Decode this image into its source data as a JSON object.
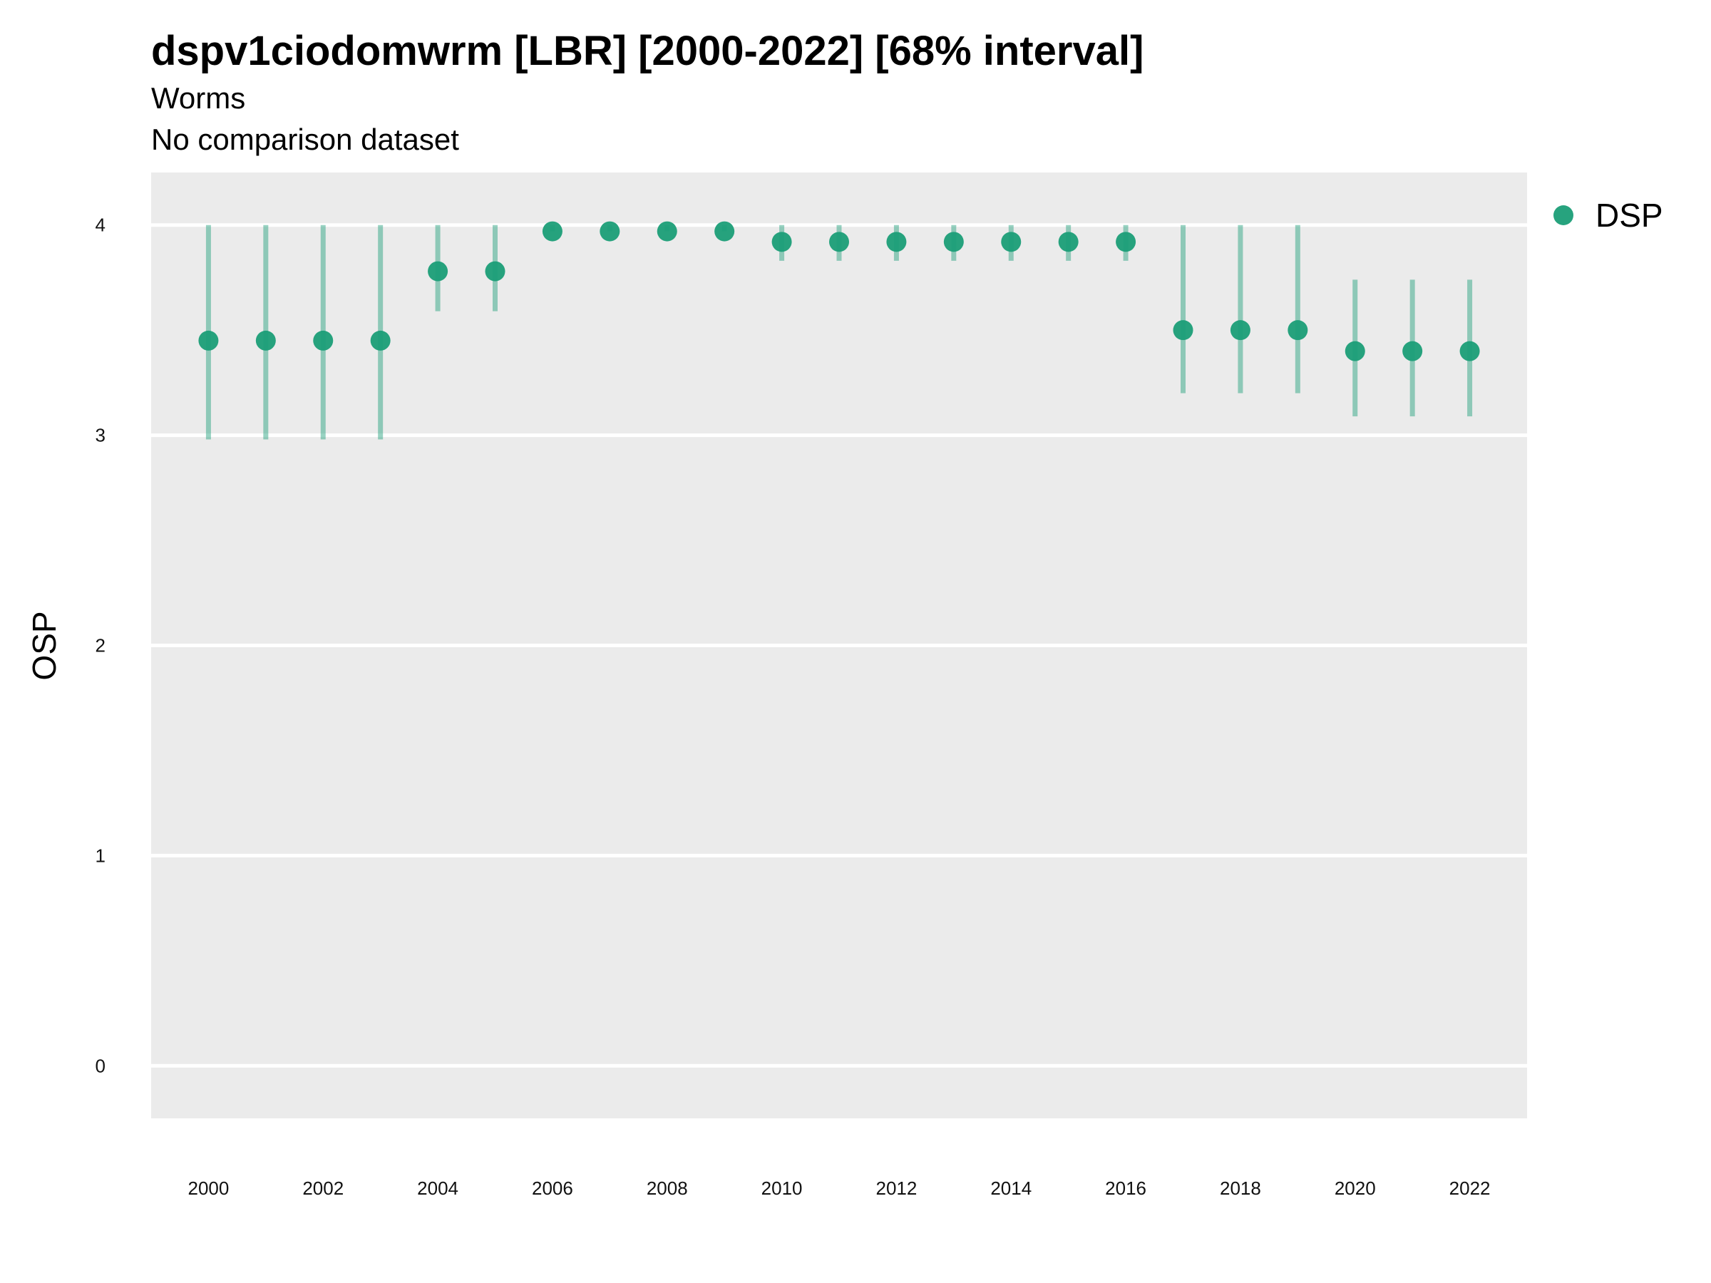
{
  "header": {
    "title": "dspv1ciodomwrm [LBR] [2000-2022] [68% interval]",
    "subtitle": "Worms",
    "caption": "No comparison dataset"
  },
  "chart_data": {
    "type": "scatter",
    "title": "dspv1ciodomwrm [LBR] [2000-2022] [68% interval]",
    "subtitle": "Worms",
    "xlabel": "",
    "ylabel": "OSP",
    "xlim": [
      1999,
      2023
    ],
    "ylim": [
      -0.25,
      4.25
    ],
    "xticks": [
      2000,
      2002,
      2004,
      2006,
      2008,
      2010,
      2012,
      2014,
      2016,
      2018,
      2020,
      2022
    ],
    "yticks": [
      0,
      1,
      2,
      3,
      4
    ],
    "grid": true,
    "legend_position": "right",
    "series": [
      {
        "name": "DSP",
        "color": "#1b9e77",
        "x": [
          2000,
          2001,
          2002,
          2003,
          2004,
          2005,
          2006,
          2007,
          2008,
          2009,
          2010,
          2011,
          2012,
          2013,
          2014,
          2015,
          2016,
          2017,
          2018,
          2019,
          2020,
          2021,
          2022
        ],
        "y": [
          3.45,
          3.45,
          3.45,
          3.45,
          3.78,
          3.78,
          3.97,
          3.97,
          3.97,
          3.97,
          3.92,
          3.92,
          3.92,
          3.92,
          3.92,
          3.92,
          3.92,
          3.5,
          3.5,
          3.5,
          3.4,
          3.4,
          3.4
        ],
        "lower": [
          2.98,
          2.98,
          2.98,
          2.98,
          3.59,
          3.59,
          3.97,
          3.97,
          3.97,
          3.97,
          3.83,
          3.83,
          3.83,
          3.83,
          3.83,
          3.83,
          3.83,
          3.2,
          3.2,
          3.2,
          3.09,
          3.09,
          3.09
        ],
        "upper": [
          4.0,
          4.0,
          4.0,
          4.0,
          4.0,
          4.0,
          4.0,
          4.0,
          4.0,
          4.0,
          4.0,
          4.0,
          4.0,
          4.0,
          4.0,
          4.0,
          4.0,
          4.0,
          4.0,
          4.0,
          3.74,
          3.74,
          3.74
        ]
      }
    ]
  }
}
